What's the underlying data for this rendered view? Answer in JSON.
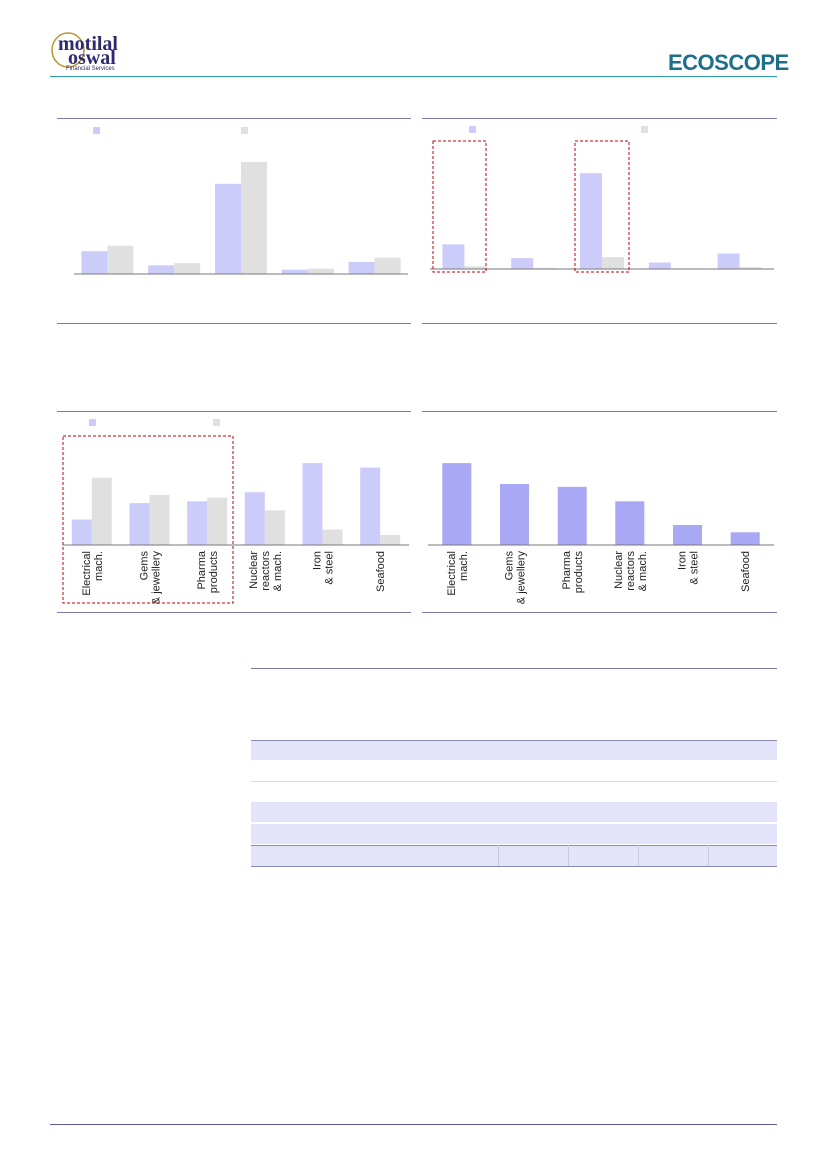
{
  "header": {
    "brand_left_line1": "motilal",
    "brand_left_line2": "oswal",
    "brand_left_sub": "Financial Services",
    "brand_right": "ECOSCOPE"
  },
  "colors": {
    "series_a": "#ccccfa",
    "series_b": "#e0e0e0",
    "series_single": "#a8a8f4",
    "highlight_box": "#c0000a",
    "table_band": "#e3e3fa"
  },
  "chart_data": [
    {
      "type": "bar",
      "categories": [
        "",
        "",
        "",
        "",
        ""
      ],
      "series": [
        {
          "values": [
            21,
            8,
            83,
            4,
            11
          ]
        },
        {
          "values": [
            26,
            10,
            103,
            5,
            15
          ]
        }
      ],
      "ylim": [
        0,
        115
      ]
    },
    {
      "type": "bar",
      "categories": [
        "",
        "",
        "",
        "",
        ""
      ],
      "series": [
        {
          "values": [
            27,
            12,
            105,
            7,
            17
          ]
        },
        {
          "values": [
            3,
            1,
            13,
            0.5,
            2
          ]
        }
      ],
      "ylim": [
        -3,
        125
      ]
    },
    {
      "type": "bar",
      "categories": [
        "Electrical mach.",
        "Gems & jewellery",
        "Pharma products",
        "Nuclear reactors & mach.",
        "Iron & steel",
        "Seafood"
      ],
      "series": [
        {
          "values": [
            28,
            46,
            48,
            58,
            90,
            85
          ]
        },
        {
          "values": [
            74,
            55,
            52,
            38,
            17,
            11
          ]
        }
      ],
      "ylim": [
        0,
        100
      ]
    },
    {
      "type": "bar",
      "categories": [
        "Electrical mach.",
        "Gems & jewellery",
        "Pharma products",
        "Nuclear reactors & mach.",
        "Iron & steel",
        "Seafood"
      ],
      "series": [
        {
          "values": [
            90,
            67,
            64,
            48,
            22,
            14
          ]
        }
      ],
      "ylim": [
        0,
        100
      ]
    }
  ]
}
